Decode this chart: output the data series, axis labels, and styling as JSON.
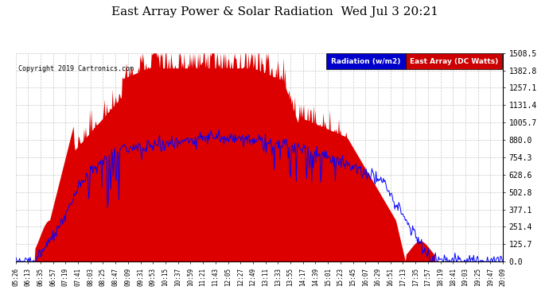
{
  "title": "East Array Power & Solar Radiation  Wed Jul 3 20:21",
  "copyright": "Copyright 2019 Cartronics.com",
  "legend_radiation": "Radiation (w/m2)",
  "legend_east": "East Array (DC Watts)",
  "legend_radiation_bg": "#0000cc",
  "legend_east_bg": "#cc0000",
  "yticks": [
    0.0,
    125.7,
    251.4,
    377.1,
    502.8,
    628.6,
    754.3,
    880.0,
    1005.7,
    1131.4,
    1257.1,
    1382.8,
    1508.5
  ],
  "ymax": 1508.5,
  "grid_color": "#bbbbbb",
  "background_color": "#ffffff",
  "title_fontsize": 11,
  "x_label_fontsize": 5.5,
  "y_label_fontsize": 7,
  "xtick_labels": [
    "05:26",
    "06:13",
    "06:35",
    "06:57",
    "07:19",
    "07:41",
    "08:03",
    "08:25",
    "08:47",
    "09:09",
    "09:31",
    "09:53",
    "10:15",
    "10:37",
    "10:59",
    "11:21",
    "11:43",
    "12:05",
    "12:27",
    "12:49",
    "13:11",
    "13:33",
    "13:55",
    "14:17",
    "14:39",
    "15:01",
    "15:23",
    "15:45",
    "16:07",
    "16:29",
    "16:51",
    "17:13",
    "17:35",
    "17:57",
    "18:19",
    "18:41",
    "19:03",
    "19:25",
    "19:47",
    "20:09"
  ]
}
